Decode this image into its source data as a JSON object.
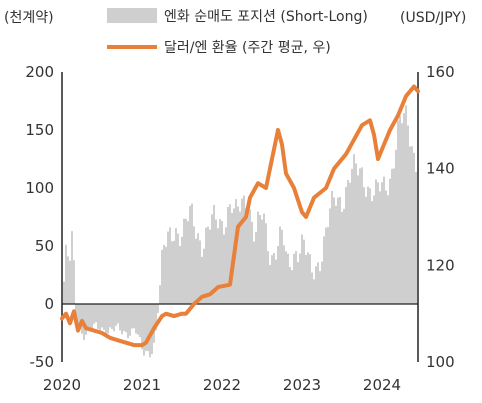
{
  "chart_data": {
    "type": "bar+line",
    "left_unit": "(천계약)",
    "right_unit": "(USD/JPY)",
    "legend_position": "top",
    "grid": false,
    "y_left": {
      "min": -50,
      "max": 200,
      "ticks": [
        "-50",
        "0",
        "50",
        "100",
        "150",
        "200"
      ],
      "tick_values": [
        -50,
        0,
        50,
        100,
        150,
        200
      ]
    },
    "y_right": {
      "min": 100,
      "max": 160,
      "ticks": [
        "100",
        "120",
        "140",
        "160"
      ],
      "tick_values": [
        100,
        120,
        140,
        160
      ]
    },
    "x_axis": {
      "min": 2020.0,
      "max": 2024.45,
      "ticks": [
        "2020",
        "2021",
        "2022",
        "2023",
        "2024"
      ],
      "tick_values": [
        2020,
        2021,
        2022,
        2023,
        2024
      ]
    },
    "series": [
      {
        "name": "엔화 순매도 포지션 (Short-Long)",
        "kind": "bar",
        "axis": "left",
        "color": "#cfcfcf",
        "x": [
          2020.0,
          2020.04,
          2020.08,
          2020.12,
          2020.16,
          2020.25,
          2020.5,
          2020.75,
          2020.9,
          2021.0,
          2021.1,
          2021.15,
          2021.25,
          2021.4,
          2021.5,
          2021.6,
          2021.75,
          2021.9,
          2022.0,
          2022.1,
          2022.15,
          2022.25,
          2022.3,
          2022.4,
          2022.5,
          2022.6,
          2022.75,
          2022.8,
          2022.9,
          2023.0,
          2023.1,
          2023.25,
          2023.4,
          2023.5,
          2023.6,
          2023.75,
          2023.9,
          2024.0,
          2024.1,
          2024.2,
          2024.3,
          2024.4,
          2024.45
        ],
        "values": [
          10,
          40,
          30,
          55,
          -10,
          -25,
          -20,
          -25,
          -20,
          -45,
          -40,
          -30,
          40,
          70,
          60,
          75,
          55,
          70,
          75,
          85,
          70,
          90,
          100,
          55,
          75,
          45,
          55,
          30,
          50,
          50,
          25,
          50,
          90,
          95,
          110,
          115,
          90,
          100,
          115,
          150,
          160,
          130,
          120
        ]
      },
      {
        "name": "달러/엔 환율 (주간 평균, 우)",
        "kind": "line",
        "axis": "right",
        "color": "#e8803a",
        "x": [
          2020.0,
          2020.05,
          2020.1,
          2020.15,
          2020.2,
          2020.25,
          2020.3,
          2020.4,
          2020.5,
          2020.6,
          2020.7,
          2020.8,
          2020.9,
          2021.0,
          2021.05,
          2021.15,
          2021.25,
          2021.3,
          2021.4,
          2021.5,
          2021.55,
          2021.65,
          2021.75,
          2021.85,
          2021.95,
          2022.1,
          2022.15,
          2022.2,
          2022.3,
          2022.35,
          2022.45,
          2022.55,
          2022.65,
          2022.7,
          2022.75,
          2022.8,
          2022.9,
          2023.0,
          2023.05,
          2023.15,
          2023.3,
          2023.4,
          2023.45,
          2023.55,
          2023.65,
          2023.75,
          2023.85,
          2023.9,
          2023.95,
          2024.0,
          2024.1,
          2024.2,
          2024.3,
          2024.4,
          2024.45
        ],
        "values": [
          109,
          110,
          108,
          110.5,
          106.5,
          108.5,
          107,
          106.5,
          106,
          105,
          104.5,
          104,
          103.5,
          103.5,
          104,
          107,
          109.5,
          110,
          109.5,
          110,
          110,
          112,
          113.5,
          114,
          115.5,
          116,
          122,
          128,
          130,
          134,
          137,
          136,
          144,
          148,
          145,
          139,
          136,
          131,
          130,
          134,
          136,
          140,
          141,
          143,
          146,
          149,
          150,
          147,
          142,
          144,
          148,
          151,
          155,
          157,
          156
        ]
      }
    ]
  }
}
